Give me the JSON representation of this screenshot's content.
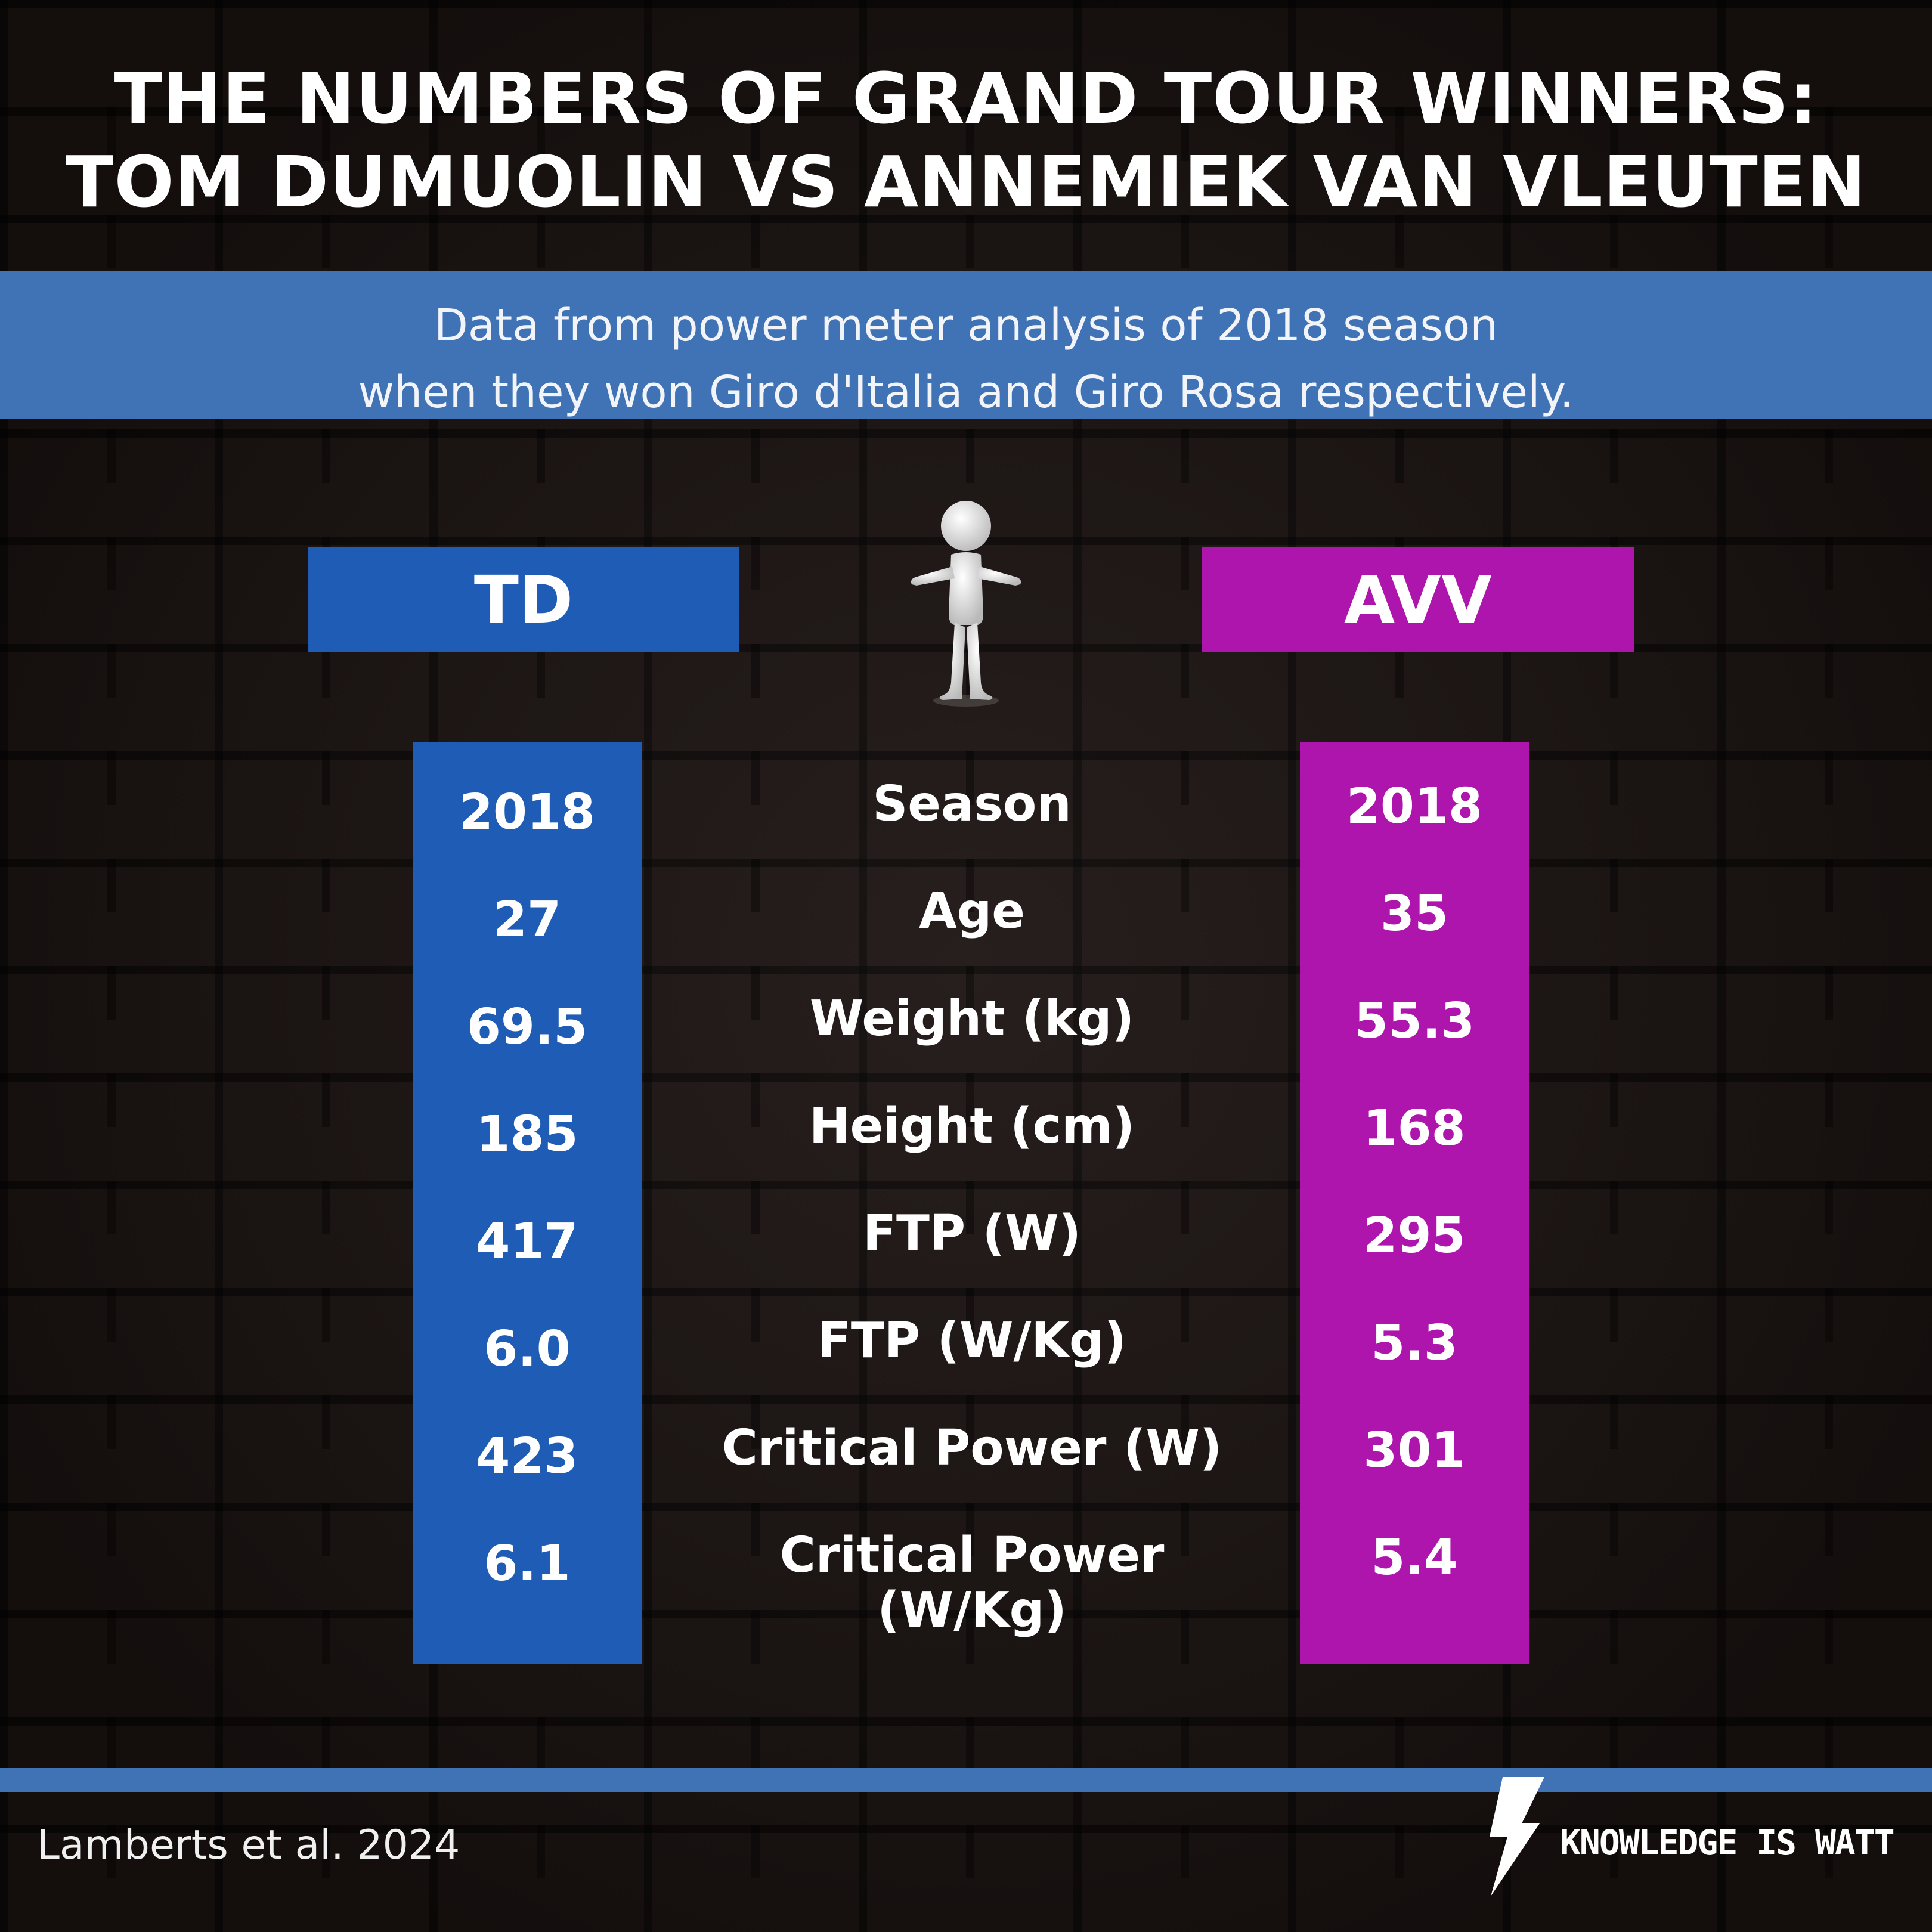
{
  "title": {
    "line1": "THE NUMBERS OF GRAND TOUR WINNERS:",
    "line2": "TOM DUMUOLIN VS ANNEMIEK VAN VLEUTEN"
  },
  "subtitle": {
    "line1": "Data from power meter analysis of 2018 season",
    "line2": "when they won Giro d'Italia and Giro Rosa respectively."
  },
  "riders": {
    "left": {
      "label": "TD",
      "color": "#1f5cb5"
    },
    "right": {
      "label": "AVV",
      "color": "#ad15ad"
    }
  },
  "metrics": [
    {
      "label": "Season",
      "td": "2018",
      "avv": "2018"
    },
    {
      "label": "Age",
      "td": "27",
      "avv": "35"
    },
    {
      "label": "Weight (kg)",
      "td": "69.5",
      "avv": "55.3"
    },
    {
      "label": "Height (cm)",
      "td": "185",
      "avv": "168"
    },
    {
      "label": "FTP (W)",
      "td": "417",
      "avv": "295"
    },
    {
      "label": "FTP (W/Kg)",
      "td": "6.0",
      "avv": "5.3"
    },
    {
      "label": "Critical Power (W)",
      "td": "423",
      "avv": "301"
    },
    {
      "label": "Critical Power",
      "label_line2": "(W/Kg)",
      "td": "6.1",
      "avv": "5.4"
    }
  ],
  "footer": {
    "source": "Lamberts et al. 2024",
    "brand": "KNOWLEDGE IS WATT",
    "brand_icon": "lightning-bolt-icon"
  },
  "figure_icon": "pointing-person-icon",
  "colors": {
    "band": "#3f73b5",
    "td": "#1f5cb5",
    "avv": "#ad15ad",
    "background": "#1e1614"
  }
}
